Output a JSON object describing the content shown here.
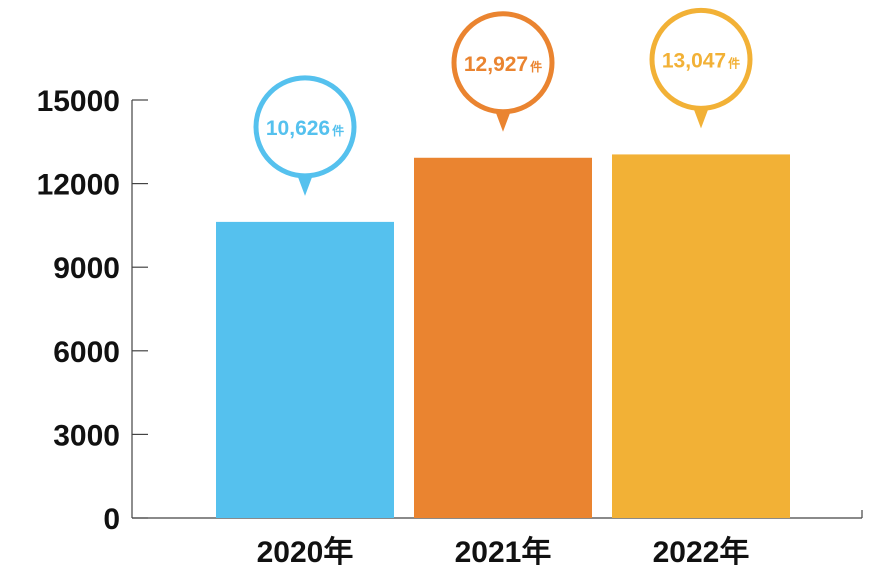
{
  "chart_data": {
    "type": "bar",
    "categories": [
      "2020年",
      "2021年",
      "2022年"
    ],
    "values": [
      10626,
      12927,
      13047
    ],
    "value_labels": [
      "10,626",
      "12,927",
      "13,047"
    ],
    "value_unit": "件",
    "ylim": [
      0,
      15000
    ],
    "yticks": [
      "0",
      "3000",
      "6000",
      "9000",
      "12000",
      "15000"
    ],
    "title": "",
    "xlabel": "",
    "ylabel": "",
    "grid": false,
    "legend": "none",
    "colors": [
      "#55c1ee",
      "#ea8430",
      "#f2b136"
    ]
  }
}
